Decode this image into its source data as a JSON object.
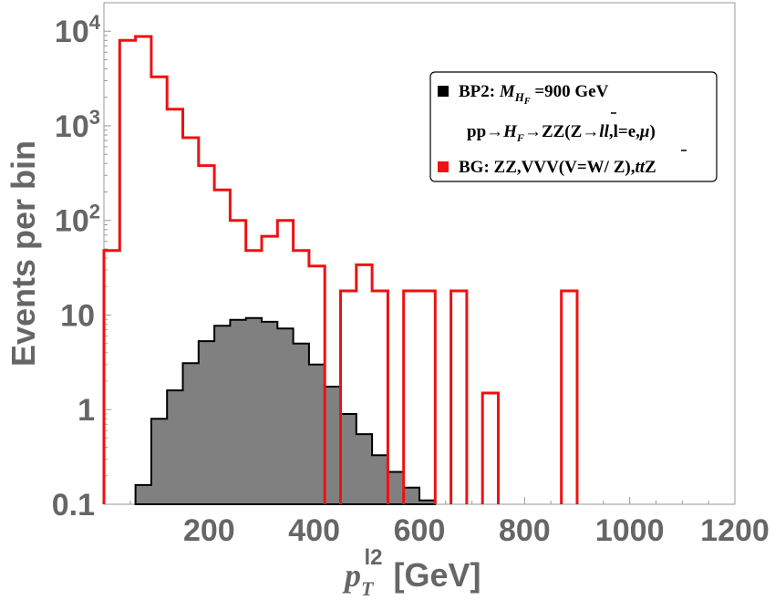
{
  "chart_data": {
    "type": "histogram",
    "title": "",
    "xlabel": "p_T^l2 [GeV]",
    "xlabel_main": "p",
    "xlabel_sub": "T",
    "xlabel_sup": "l2",
    "xlabel_unit": "[GeV]",
    "ylabel": "Events per bin",
    "xlim": [
      0,
      1200
    ],
    "ylim": [
      0.1,
      20000
    ],
    "yscale": "log",
    "x_ticks": [
      200,
      400,
      600,
      800,
      1000,
      1200
    ],
    "x_tick_labels": [
      "200",
      "400",
      "600",
      "800",
      "1000",
      "1200"
    ],
    "y_ticks": [
      {
        "value": 10000,
        "base": "10",
        "exp": "4"
      },
      {
        "value": 1000,
        "base": "10",
        "exp": "3"
      },
      {
        "value": 100,
        "base": "10",
        "exp": "2"
      },
      {
        "value": 10,
        "base": "10",
        "exp": ""
      },
      {
        "value": 1,
        "base": "1",
        "exp": ""
      },
      {
        "value": 0.1,
        "base": "0.1",
        "exp": ""
      }
    ],
    "series": [
      {
        "name": "BP2",
        "color": "#000000",
        "fill": "#808080",
        "bins": [
          {
            "x0": 60,
            "x1": 90,
            "y": 0.16
          },
          {
            "x0": 90,
            "x1": 120,
            "y": 0.8
          },
          {
            "x0": 120,
            "x1": 150,
            "y": 1.6
          },
          {
            "x0": 150,
            "x1": 180,
            "y": 3.1
          },
          {
            "x0": 180,
            "x1": 210,
            "y": 5.3
          },
          {
            "x0": 210,
            "x1": 240,
            "y": 7.7
          },
          {
            "x0": 240,
            "x1": 270,
            "y": 8.9
          },
          {
            "x0": 270,
            "x1": 300,
            "y": 9.3
          },
          {
            "x0": 300,
            "x1": 330,
            "y": 8.5
          },
          {
            "x0": 330,
            "x1": 360,
            "y": 7.2
          },
          {
            "x0": 360,
            "x1": 390,
            "y": 5.0
          },
          {
            "x0": 390,
            "x1": 420,
            "y": 3.0
          },
          {
            "x0": 420,
            "x1": 450,
            "y": 1.75
          },
          {
            "x0": 450,
            "x1": 480,
            "y": 0.9
          },
          {
            "x0": 480,
            "x1": 510,
            "y": 0.55
          },
          {
            "x0": 510,
            "x1": 540,
            "y": 0.33
          },
          {
            "x0": 540,
            "x1": 570,
            "y": 0.22
          },
          {
            "x0": 570,
            "x1": 600,
            "y": 0.15
          },
          {
            "x0": 600,
            "x1": 630,
            "y": 0.11
          }
        ]
      },
      {
        "name": "BG",
        "color": "#ee1111",
        "fill": "none",
        "bins": [
          {
            "x0": 0,
            "x1": 30,
            "y": 48
          },
          {
            "x0": 30,
            "x1": 60,
            "y": 8000
          },
          {
            "x0": 60,
            "x1": 90,
            "y": 8800
          },
          {
            "x0": 90,
            "x1": 120,
            "y": 3300
          },
          {
            "x0": 120,
            "x1": 150,
            "y": 1500
          },
          {
            "x0": 150,
            "x1": 180,
            "y": 750
          },
          {
            "x0": 180,
            "x1": 210,
            "y": 380
          },
          {
            "x0": 210,
            "x1": 240,
            "y": 210
          },
          {
            "x0": 240,
            "x1": 270,
            "y": 100
          },
          {
            "x0": 270,
            "x1": 300,
            "y": 48
          },
          {
            "x0": 300,
            "x1": 330,
            "y": 68
          },
          {
            "x0": 330,
            "x1": 360,
            "y": 100
          },
          {
            "x0": 360,
            "x1": 390,
            "y": 48
          },
          {
            "x0": 390,
            "x1": 420,
            "y": 33
          },
          {
            "x0": 450,
            "x1": 480,
            "y": 18
          },
          {
            "x0": 480,
            "x1": 510,
            "y": 34
          },
          {
            "x0": 510,
            "x1": 540,
            "y": 18
          },
          {
            "x0": 570,
            "x1": 600,
            "y": 18
          },
          {
            "x0": 600,
            "x1": 630,
            "y": 18
          },
          {
            "x0": 660,
            "x1": 690,
            "y": 18
          },
          {
            "x0": 720,
            "x1": 750,
            "y": 1.5
          },
          {
            "x0": 870,
            "x1": 900,
            "y": 18
          }
        ]
      }
    ],
    "legend": {
      "position": "top-right",
      "entries": [
        {
          "marker_color": "#000000",
          "prefix": "BP2: ",
          "symbol_main": "M",
          "symbol_sub": "H",
          "symbol_subsub": "F",
          "suffix": " =900 GeV"
        },
        {
          "line_part1": "pp→",
          "line_h": "H",
          "line_h_sub": "F",
          "line_part2": "→ZZ(Z→",
          "line_ll": "l",
          "line_llbar": "l",
          "line_part3": ",l=e,",
          "line_mu": "μ",
          "line_part4": ")"
        },
        {
          "marker_color": "#ee1111",
          "prefix": "BG: ZZ,VVV(V=W/ Z),",
          "tt1": "t",
          "tt2": "t",
          "suffix": "Z"
        }
      ]
    }
  }
}
